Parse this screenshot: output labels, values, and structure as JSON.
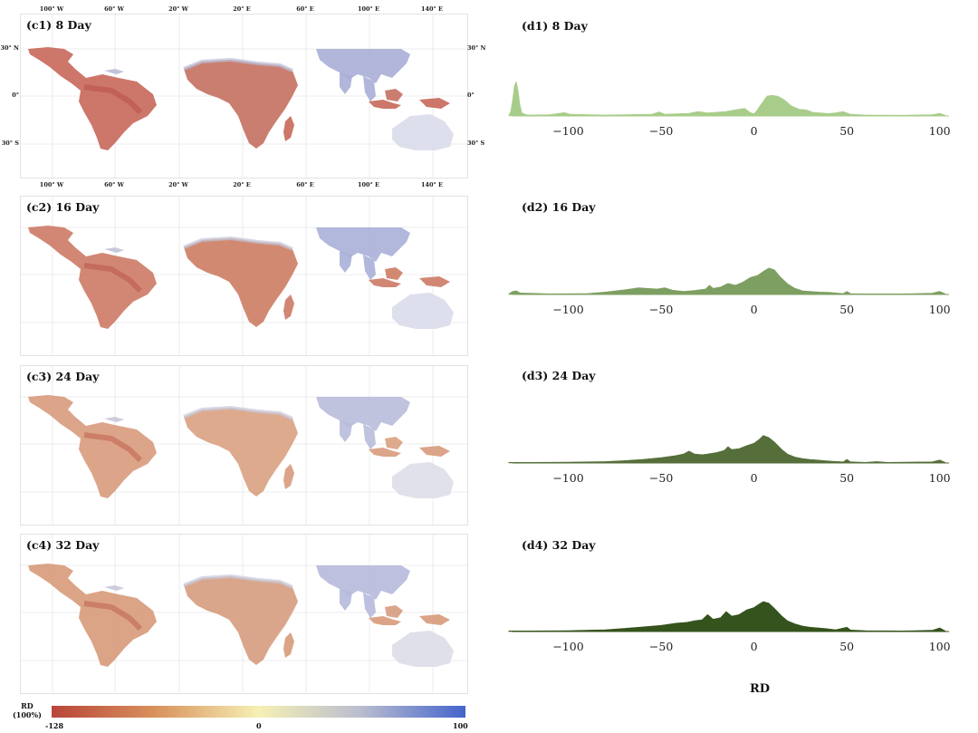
{
  "figure": {
    "map_panels": [
      {
        "title": "(c1) 8 Day"
      },
      {
        "title": "(c2) 16 Day"
      },
      {
        "title": "(c3) 24 Day"
      },
      {
        "title": "(c4) 32 Day"
      }
    ],
    "lon_labels": [
      "100° W",
      "60° W",
      "20° W",
      "20° E",
      "60° E",
      "100° E",
      "140° E"
    ],
    "lat_labels": [
      "30° N",
      "0°",
      "30° S"
    ],
    "colorbar": {
      "title": "RD\n(100%)",
      "min_label": "-128",
      "mid_label": "0",
      "max_label": "100",
      "colors": [
        "#b8453a",
        "#d9915c",
        "#f6f0b4",
        "#b9bccf",
        "#4464cc"
      ]
    },
    "x_axis_label": "RD"
  },
  "chart_data": [
    {
      "type": "area",
      "title": "(d1) 8 Day",
      "color": "#a8cd8a",
      "xlim": [
        -130,
        105
      ],
      "xticks": [
        -100,
        -50,
        0,
        50,
        100
      ],
      "tick_labels": [
        "−100",
        "−50",
        "0",
        "50",
        "100"
      ],
      "density": [
        [
          -132,
          0.02
        ],
        [
          -131,
          0.12
        ],
        [
          -130,
          0.45
        ],
        [
          -129,
          0.88
        ],
        [
          -128,
          1.0
        ],
        [
          -127,
          0.72
        ],
        [
          -126,
          0.32
        ],
        [
          -125,
          0.09
        ],
        [
          -122,
          0.03
        ],
        [
          -110,
          0.04
        ],
        [
          -102,
          0.1
        ],
        [
          -99,
          0.05
        ],
        [
          -80,
          0.03
        ],
        [
          -55,
          0.05
        ],
        [
          -51,
          0.12
        ],
        [
          -48,
          0.05
        ],
        [
          -35,
          0.08
        ],
        [
          -30,
          0.13
        ],
        [
          -25,
          0.09
        ],
        [
          -15,
          0.13
        ],
        [
          -10,
          0.18
        ],
        [
          -5,
          0.22
        ],
        [
          -2,
          0.1
        ],
        [
          0,
          0.06
        ],
        [
          1,
          0.12
        ],
        [
          4,
          0.35
        ],
        [
          7,
          0.58
        ],
        [
          10,
          0.6
        ],
        [
          13,
          0.57
        ],
        [
          16,
          0.48
        ],
        [
          20,
          0.3
        ],
        [
          24,
          0.2
        ],
        [
          28,
          0.18
        ],
        [
          32,
          0.1
        ],
        [
          36,
          0.09
        ],
        [
          40,
          0.07
        ],
        [
          44,
          0.09
        ],
        [
          48,
          0.13
        ],
        [
          52,
          0.05
        ],
        [
          60,
          0.03
        ],
        [
          80,
          0.02
        ],
        [
          96,
          0.04
        ],
        [
          100,
          0.08
        ],
        [
          103,
          0.02
        ]
      ]
    },
    {
      "type": "area",
      "title": "(d2) 16 Day",
      "color": "#7d9f61",
      "xlim": [
        -130,
        105
      ],
      "xticks": [
        -100,
        -50,
        0,
        50,
        100
      ],
      "tick_labels": [
        "−100",
        "−50",
        "0",
        "50",
        "100"
      ],
      "density": [
        [
          -132,
          0.02
        ],
        [
          -130,
          0.1
        ],
        [
          -128,
          0.12
        ],
        [
          -126,
          0.05
        ],
        [
          -110,
          0.02
        ],
        [
          -90,
          0.03
        ],
        [
          -80,
          0.08
        ],
        [
          -70,
          0.15
        ],
        [
          -62,
          0.22
        ],
        [
          -58,
          0.2
        ],
        [
          -52,
          0.18
        ],
        [
          -48,
          0.22
        ],
        [
          -44,
          0.14
        ],
        [
          -38,
          0.1
        ],
        [
          -32,
          0.13
        ],
        [
          -26,
          0.18
        ],
        [
          -24,
          0.3
        ],
        [
          -22,
          0.2
        ],
        [
          -18,
          0.24
        ],
        [
          -14,
          0.36
        ],
        [
          -10,
          0.3
        ],
        [
          -6,
          0.4
        ],
        [
          -2,
          0.55
        ],
        [
          2,
          0.62
        ],
        [
          5,
          0.75
        ],
        [
          8,
          0.86
        ],
        [
          11,
          0.8
        ],
        [
          14,
          0.58
        ],
        [
          18,
          0.35
        ],
        [
          22,
          0.2
        ],
        [
          26,
          0.12
        ],
        [
          30,
          0.1
        ],
        [
          35,
          0.08
        ],
        [
          40,
          0.07
        ],
        [
          44,
          0.05
        ],
        [
          48,
          0.03
        ],
        [
          50,
          0.1
        ],
        [
          52,
          0.03
        ],
        [
          60,
          0.02
        ],
        [
          80,
          0.02
        ],
        [
          96,
          0.04
        ],
        [
          100,
          0.1
        ],
        [
          103,
          0.02
        ]
      ]
    },
    {
      "type": "area",
      "title": "(d3) 24 Day",
      "color": "#566f3a",
      "xlim": [
        -130,
        105
      ],
      "xticks": [
        -100,
        -50,
        0,
        50,
        100
      ],
      "tick_labels": [
        "−100",
        "−50",
        "0",
        "50",
        "100"
      ],
      "density": [
        [
          -132,
          0.02
        ],
        [
          -120,
          0.02
        ],
        [
          -100,
          0.03
        ],
        [
          -80,
          0.05
        ],
        [
          -70,
          0.08
        ],
        [
          -60,
          0.12
        ],
        [
          -50,
          0.18
        ],
        [
          -42,
          0.25
        ],
        [
          -38,
          0.3
        ],
        [
          -35,
          0.4
        ],
        [
          -32,
          0.3
        ],
        [
          -28,
          0.28
        ],
        [
          -25,
          0.3
        ],
        [
          -20,
          0.35
        ],
        [
          -16,
          0.42
        ],
        [
          -14,
          0.55
        ],
        [
          -12,
          0.45
        ],
        [
          -8,
          0.48
        ],
        [
          -4,
          0.58
        ],
        [
          0,
          0.66
        ],
        [
          3,
          0.8
        ],
        [
          5,
          0.92
        ],
        [
          8,
          0.85
        ],
        [
          11,
          0.7
        ],
        [
          15,
          0.45
        ],
        [
          18,
          0.3
        ],
        [
          22,
          0.2
        ],
        [
          26,
          0.15
        ],
        [
          30,
          0.12
        ],
        [
          34,
          0.1
        ],
        [
          38,
          0.08
        ],
        [
          42,
          0.06
        ],
        [
          48,
          0.04
        ],
        [
          50,
          0.12
        ],
        [
          52,
          0.04
        ],
        [
          60,
          0.02
        ],
        [
          66,
          0.05
        ],
        [
          72,
          0.02
        ],
        [
          96,
          0.04
        ],
        [
          100,
          0.1
        ],
        [
          103,
          0.02
        ]
      ]
    },
    {
      "type": "area",
      "title": "(d4) 32 Day",
      "color": "#35531d",
      "xlim": [
        -130,
        105
      ],
      "xticks": [
        -100,
        -50,
        0,
        50,
        100
      ],
      "tick_labels": [
        "−100",
        "−50",
        "0",
        "50",
        "100"
      ],
      "density": [
        [
          -132,
          0.02
        ],
        [
          -120,
          0.02
        ],
        [
          -100,
          0.03
        ],
        [
          -80,
          0.06
        ],
        [
          -70,
          0.1
        ],
        [
          -60,
          0.15
        ],
        [
          -50,
          0.2
        ],
        [
          -42,
          0.27
        ],
        [
          -36,
          0.3
        ],
        [
          -32,
          0.35
        ],
        [
          -28,
          0.38
        ],
        [
          -25,
          0.55
        ],
        [
          -22,
          0.4
        ],
        [
          -18,
          0.45
        ],
        [
          -15,
          0.65
        ],
        [
          -12,
          0.5
        ],
        [
          -8,
          0.55
        ],
        [
          -4,
          0.7
        ],
        [
          0,
          0.78
        ],
        [
          3,
          0.9
        ],
        [
          5,
          0.97
        ],
        [
          8,
          0.92
        ],
        [
          11,
          0.75
        ],
        [
          15,
          0.5
        ],
        [
          18,
          0.35
        ],
        [
          22,
          0.25
        ],
        [
          26,
          0.18
        ],
        [
          30,
          0.14
        ],
        [
          34,
          0.12
        ],
        [
          38,
          0.1
        ],
        [
          44,
          0.06
        ],
        [
          50,
          0.14
        ],
        [
          52,
          0.05
        ],
        [
          60,
          0.03
        ],
        [
          80,
          0.02
        ],
        [
          96,
          0.04
        ],
        [
          100,
          0.12
        ],
        [
          103,
          0.02
        ]
      ]
    }
  ]
}
